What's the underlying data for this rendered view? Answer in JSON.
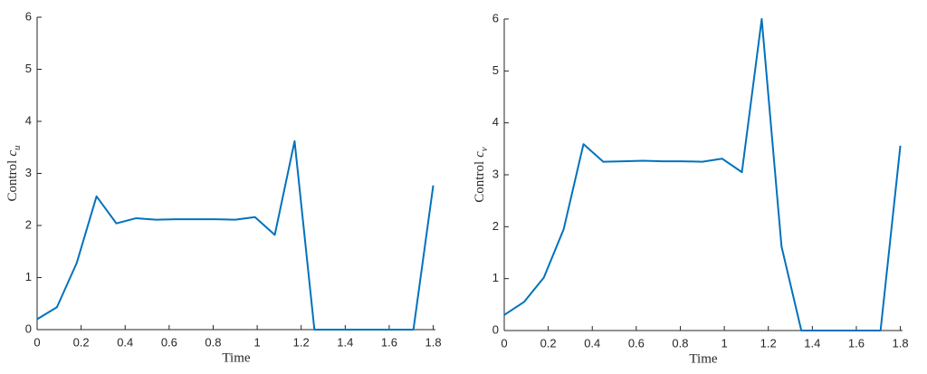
{
  "chart_data": [
    {
      "type": "line",
      "xlabel": "Time",
      "ylabel_text": "Control",
      "ylabel_var": "c",
      "ylabel_sub": "u",
      "x": [
        0,
        0.09,
        0.18,
        0.27,
        0.36,
        0.45,
        0.54,
        0.63,
        0.72,
        0.81,
        0.9,
        0.99,
        1.08,
        1.17,
        1.26,
        1.35,
        1.44,
        1.53,
        1.62,
        1.71,
        1.8
      ],
      "values": [
        0.2,
        0.43,
        1.28,
        2.56,
        2.04,
        2.14,
        2.11,
        2.12,
        2.12,
        2.12,
        2.11,
        2.16,
        1.82,
        3.62,
        0,
        0,
        0,
        0,
        0,
        0,
        2.77
      ],
      "color": "#0072bd",
      "xlim": [
        0,
        1.81
      ],
      "ylim": [
        0,
        6
      ],
      "xticks": [
        0,
        0.2,
        0.4,
        0.6,
        0.8,
        1,
        1.2,
        1.4,
        1.6,
        1.8
      ],
      "yticks": [
        0,
        1,
        2,
        3,
        4,
        5,
        6
      ]
    },
    {
      "type": "line",
      "xlabel": "Time",
      "ylabel_text": "Control",
      "ylabel_var": "c",
      "ylabel_sub": "v",
      "x": [
        0,
        0.09,
        0.18,
        0.27,
        0.36,
        0.45,
        0.54,
        0.63,
        0.72,
        0.81,
        0.9,
        0.99,
        1.08,
        1.17,
        1.26,
        1.35,
        1.44,
        1.53,
        1.62,
        1.71,
        1.8
      ],
      "values": [
        0.3,
        0.55,
        1.02,
        1.95,
        3.59,
        3.25,
        3.26,
        3.27,
        3.26,
        3.26,
        3.25,
        3.31,
        3.05,
        6,
        1.62,
        0,
        0,
        0,
        0,
        0,
        3.56
      ],
      "color": "#0072bd",
      "xlim": [
        0,
        1.81
      ],
      "ylim": [
        0,
        6
      ],
      "xticks": [
        0,
        0.2,
        0.4,
        0.6,
        0.8,
        1,
        1.2,
        1.4,
        1.6,
        1.8
      ],
      "yticks": [
        0,
        1,
        2,
        3,
        4,
        5,
        6
      ]
    }
  ]
}
